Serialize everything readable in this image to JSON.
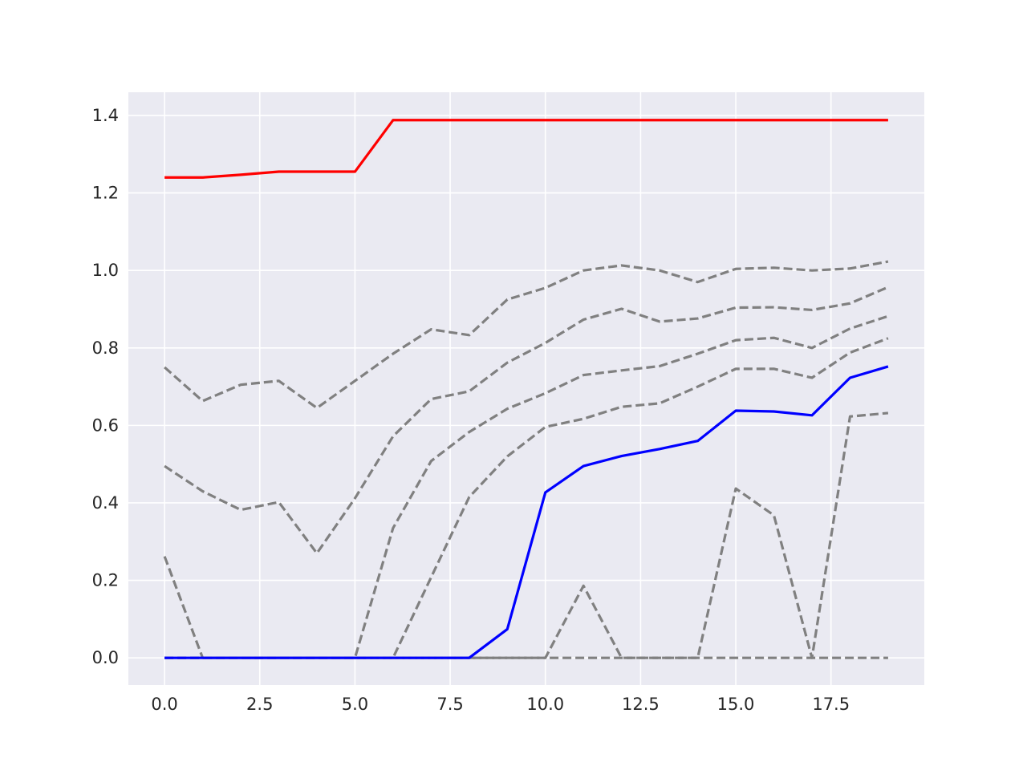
{
  "chart_data": {
    "type": "line",
    "title": "",
    "xlabel": "",
    "ylabel": "",
    "xlim": [
      -0.95,
      19.95
    ],
    "ylim": [
      -0.07,
      1.46
    ],
    "grid": true,
    "legend": "none",
    "x_ticks": [
      0.0,
      2.5,
      5.0,
      7.5,
      10.0,
      12.5,
      15.0,
      17.5
    ],
    "x_tick_labels": [
      "0.0",
      "2.5",
      "5.0",
      "7.5",
      "10.0",
      "12.5",
      "15.0",
      "17.5"
    ],
    "y_ticks": [
      0.0,
      0.2,
      0.4,
      0.6,
      0.8,
      1.0,
      1.2,
      1.4
    ],
    "y_tick_labels": [
      "0.0",
      "0.2",
      "0.4",
      "0.6",
      "0.8",
      "1.0",
      "1.2",
      "1.4"
    ],
    "x": [
      0,
      1,
      2,
      3,
      4,
      5,
      6,
      7,
      8,
      9,
      10,
      11,
      12,
      13,
      14,
      15,
      16,
      17,
      18,
      19
    ],
    "series": [
      {
        "name": "red",
        "color": "#ff0000",
        "style": "solid",
        "values": [
          1.24,
          1.24,
          1.247,
          1.255,
          1.255,
          1.255,
          1.388,
          1.388,
          1.388,
          1.388,
          1.388,
          1.388,
          1.388,
          1.388,
          1.388,
          1.388,
          1.388,
          1.388,
          1.388,
          1.388
        ]
      },
      {
        "name": "gray-1",
        "color": "#808080",
        "style": "dashed",
        "values": [
          0.75,
          0.663,
          0.705,
          0.715,
          0.645,
          0.715,
          0.785,
          0.848,
          0.833,
          0.925,
          0.955,
          1.0,
          1.013,
          1.0,
          0.97,
          1.004,
          1.007,
          1.0,
          1.005,
          1.023
        ]
      },
      {
        "name": "gray-2",
        "color": "#808080",
        "style": "dashed",
        "values": [
          0.495,
          0.43,
          0.382,
          0.402,
          0.27,
          0.412,
          0.572,
          0.668,
          0.688,
          0.762,
          0.813,
          0.873,
          0.901,
          0.868,
          0.876,
          0.904,
          0.905,
          0.898,
          0.915,
          0.957
        ]
      },
      {
        "name": "gray-3",
        "color": "#808080",
        "style": "dashed",
        "values": [
          0.0,
          0.0,
          0.0,
          0.0,
          0.0,
          0.0,
          0.335,
          0.508,
          0.583,
          0.643,
          0.683,
          0.73,
          0.742,
          0.753,
          0.785,
          0.82,
          0.826,
          0.8,
          0.85,
          0.882
        ]
      },
      {
        "name": "gray-4",
        "color": "#808080",
        "style": "dashed",
        "values": [
          0.0,
          0.0,
          0.0,
          0.0,
          0.0,
          0.0,
          0.0,
          0.208,
          0.415,
          0.52,
          0.596,
          0.617,
          0.648,
          0.657,
          0.7,
          0.746,
          0.746,
          0.723,
          0.788,
          0.825
        ]
      },
      {
        "name": "gray-5",
        "color": "#808080",
        "style": "dashed",
        "values": [
          0.262,
          0.0,
          0.0,
          0.0,
          0.0,
          0.0,
          0.0,
          0.0,
          0.0,
          0.0,
          0.0,
          0.186,
          0.0,
          0.0,
          0.0,
          0.437,
          0.368,
          0.0,
          0.623,
          0.632
        ]
      },
      {
        "name": "gray-6",
        "color": "#808080",
        "style": "dashed",
        "values": [
          0.0,
          0.0,
          0.0,
          0.0,
          0.0,
          0.0,
          0.0,
          0.0,
          0.0,
          0.0,
          0.0,
          0.0,
          0.0,
          0.0,
          0.0,
          0.0,
          0.0,
          0.0,
          0.0,
          0.0
        ]
      },
      {
        "name": "blue",
        "color": "#0000ff",
        "style": "solid",
        "values": [
          0.0,
          0.0,
          0.0,
          0.0,
          0.0,
          0.0,
          0.0,
          0.0,
          0.0,
          0.074,
          0.427,
          0.495,
          0.521,
          0.539,
          0.56,
          0.638,
          0.636,
          0.626,
          0.723,
          0.752
        ]
      }
    ]
  }
}
